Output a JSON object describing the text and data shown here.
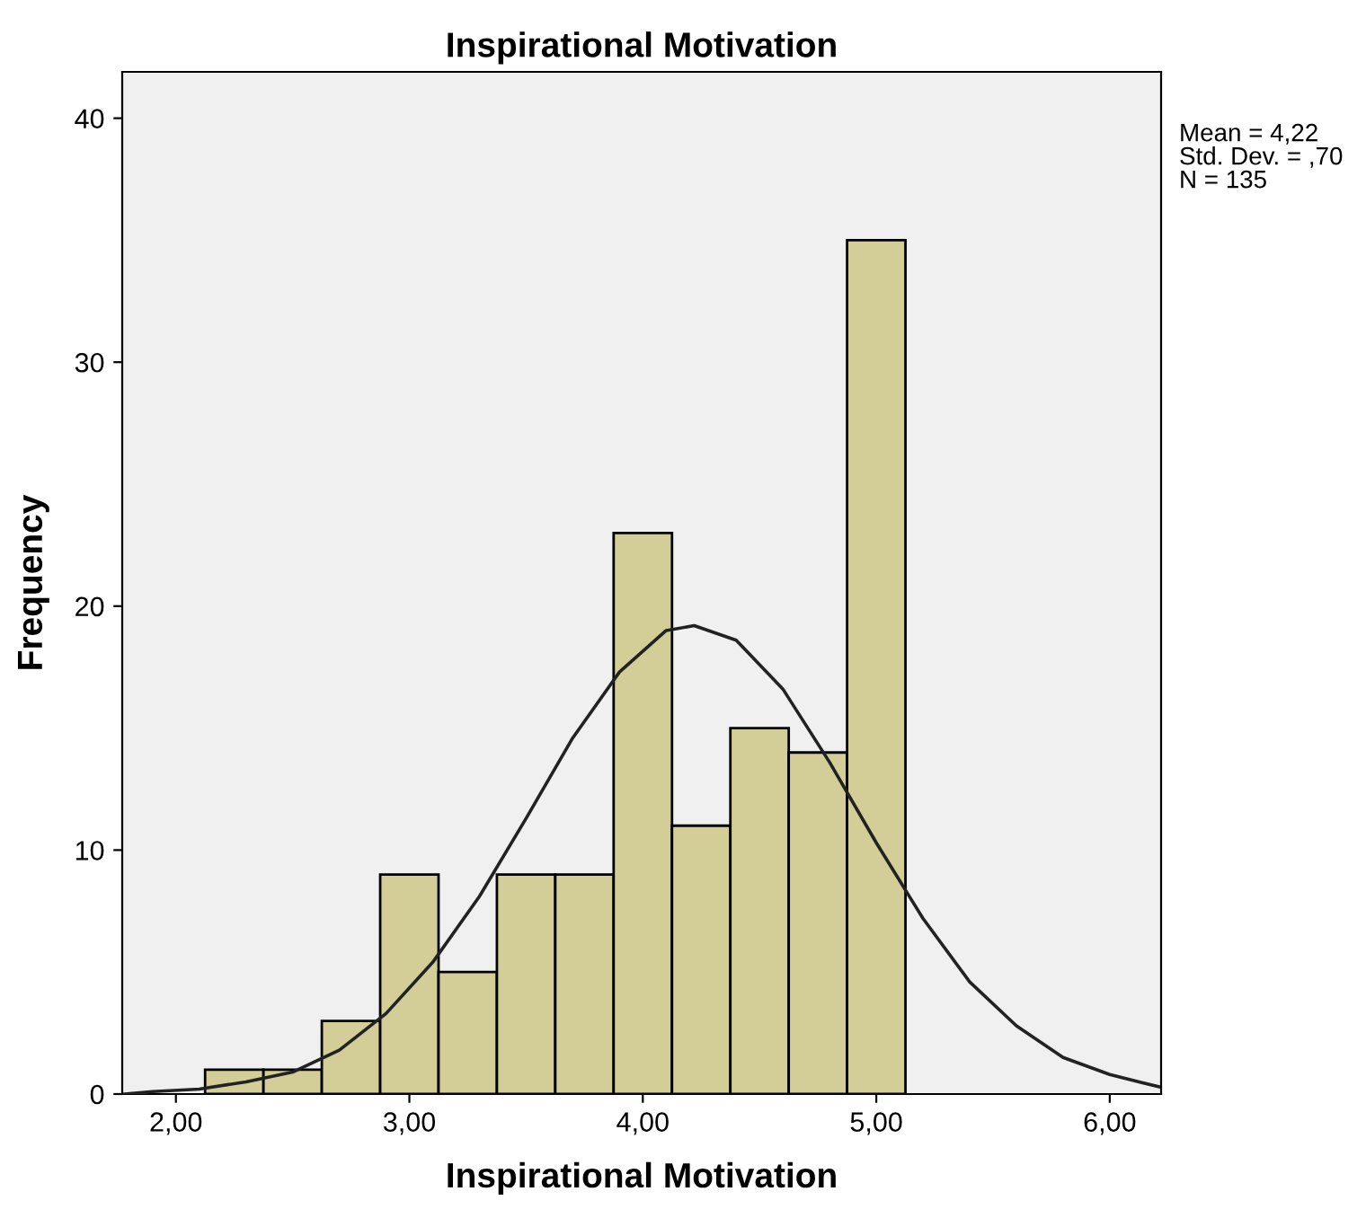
{
  "chart_data": {
    "type": "histogram",
    "title": "Inspirational Motivation",
    "xlabel": "Inspirational Motivation",
    "ylabel": "Frequency",
    "bins": [
      2.125,
      2.375,
      2.625,
      2.875,
      3.125,
      3.375,
      3.625,
      3.875,
      4.125,
      4.375,
      4.625,
      4.875,
      5.125
    ],
    "values": [
      1,
      1,
      3,
      9,
      5,
      9,
      9,
      23,
      11,
      15,
      14,
      35
    ],
    "color": "#d3ce97",
    "series": [
      {
        "type": "line",
        "color": "#222222",
        "x": [
          1.78,
          1.9,
          2.1,
          2.3,
          2.5,
          2.7,
          2.9,
          3.1,
          3.3,
          3.5,
          3.7,
          3.9,
          4.1,
          4.22,
          4.4,
          4.6,
          4.8,
          5.0,
          5.2,
          5.4,
          5.6,
          5.8,
          6.0,
          6.21
        ],
        "values": [
          0.0,
          0.1,
          0.2,
          0.5,
          0.9,
          1.8,
          3.3,
          5.4,
          8.1,
          11.3,
          14.6,
          17.3,
          19.0,
          19.2,
          18.6,
          16.6,
          13.6,
          10.3,
          7.2,
          4.6,
          2.8,
          1.5,
          0.8,
          0.3
        ]
      }
    ],
    "xlim": [
      1.77,
      6.22
    ],
    "ylim": [
      0,
      41.9
    ],
    "xticks": [
      {
        "value": 2,
        "label": "2,00"
      },
      {
        "value": 3,
        "label": "3,00"
      },
      {
        "value": 4,
        "label": "4,00"
      },
      {
        "value": 5,
        "label": "5,00"
      },
      {
        "value": 6,
        "label": "6,00"
      }
    ],
    "yticks": [
      0,
      10,
      20,
      30,
      40
    ],
    "annotations": [
      "Mean = 4,22",
      "Std. Dev. = ,70",
      "N = 135"
    ],
    "grid": false,
    "legend": false
  }
}
